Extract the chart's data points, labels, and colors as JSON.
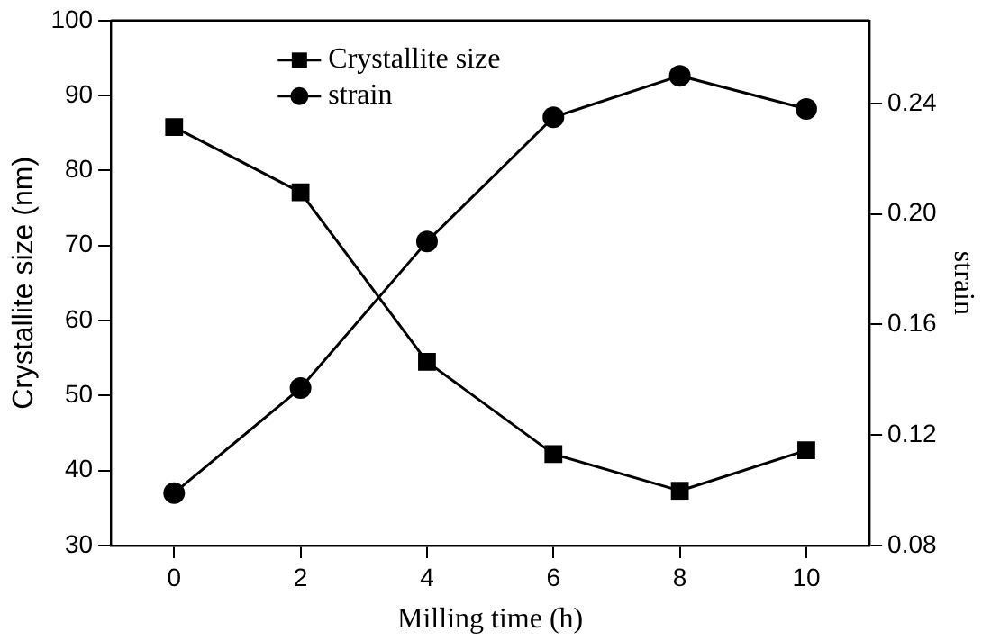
{
  "chart_data": {
    "type": "line",
    "xlabel": "Milling time (h)",
    "ylabel": "Crystallite size (nm)",
    "y2label": "strain",
    "x": [
      0,
      2,
      4,
      6,
      8,
      10
    ],
    "series": [
      {
        "name": "Crystallite size",
        "color": "#000000",
        "marker": "square",
        "values": [
          85.8,
          77.1,
          54.5,
          42.2,
          37.3,
          42.7
        ]
      },
      {
        "name": "strain",
        "color": "#000000",
        "marker": "circle",
        "axis": "y2",
        "values": [
          0.099,
          0.137,
          0.19,
          0.235,
          0.25,
          0.238
        ]
      }
    ],
    "xlim": [
      -1,
      11
    ],
    "xticks": [
      0,
      2,
      4,
      6,
      8,
      10
    ],
    "ylim": [
      30,
      100
    ],
    "yticks": [
      30,
      40,
      50,
      60,
      70,
      80,
      90,
      100
    ],
    "y2lim": [
      0.08,
      0.27
    ],
    "y2ticks": [
      {
        "value": 0.08,
        "label": "0.08"
      },
      {
        "value": 0.12,
        "label": "0.12"
      },
      {
        "value": 0.16,
        "label": "0.16"
      },
      {
        "value": 0.2,
        "label": "0.20"
      },
      {
        "value": 0.24,
        "label": "0.24"
      }
    ],
    "grid": false,
    "legend": "top left",
    "line_style": "solid"
  }
}
